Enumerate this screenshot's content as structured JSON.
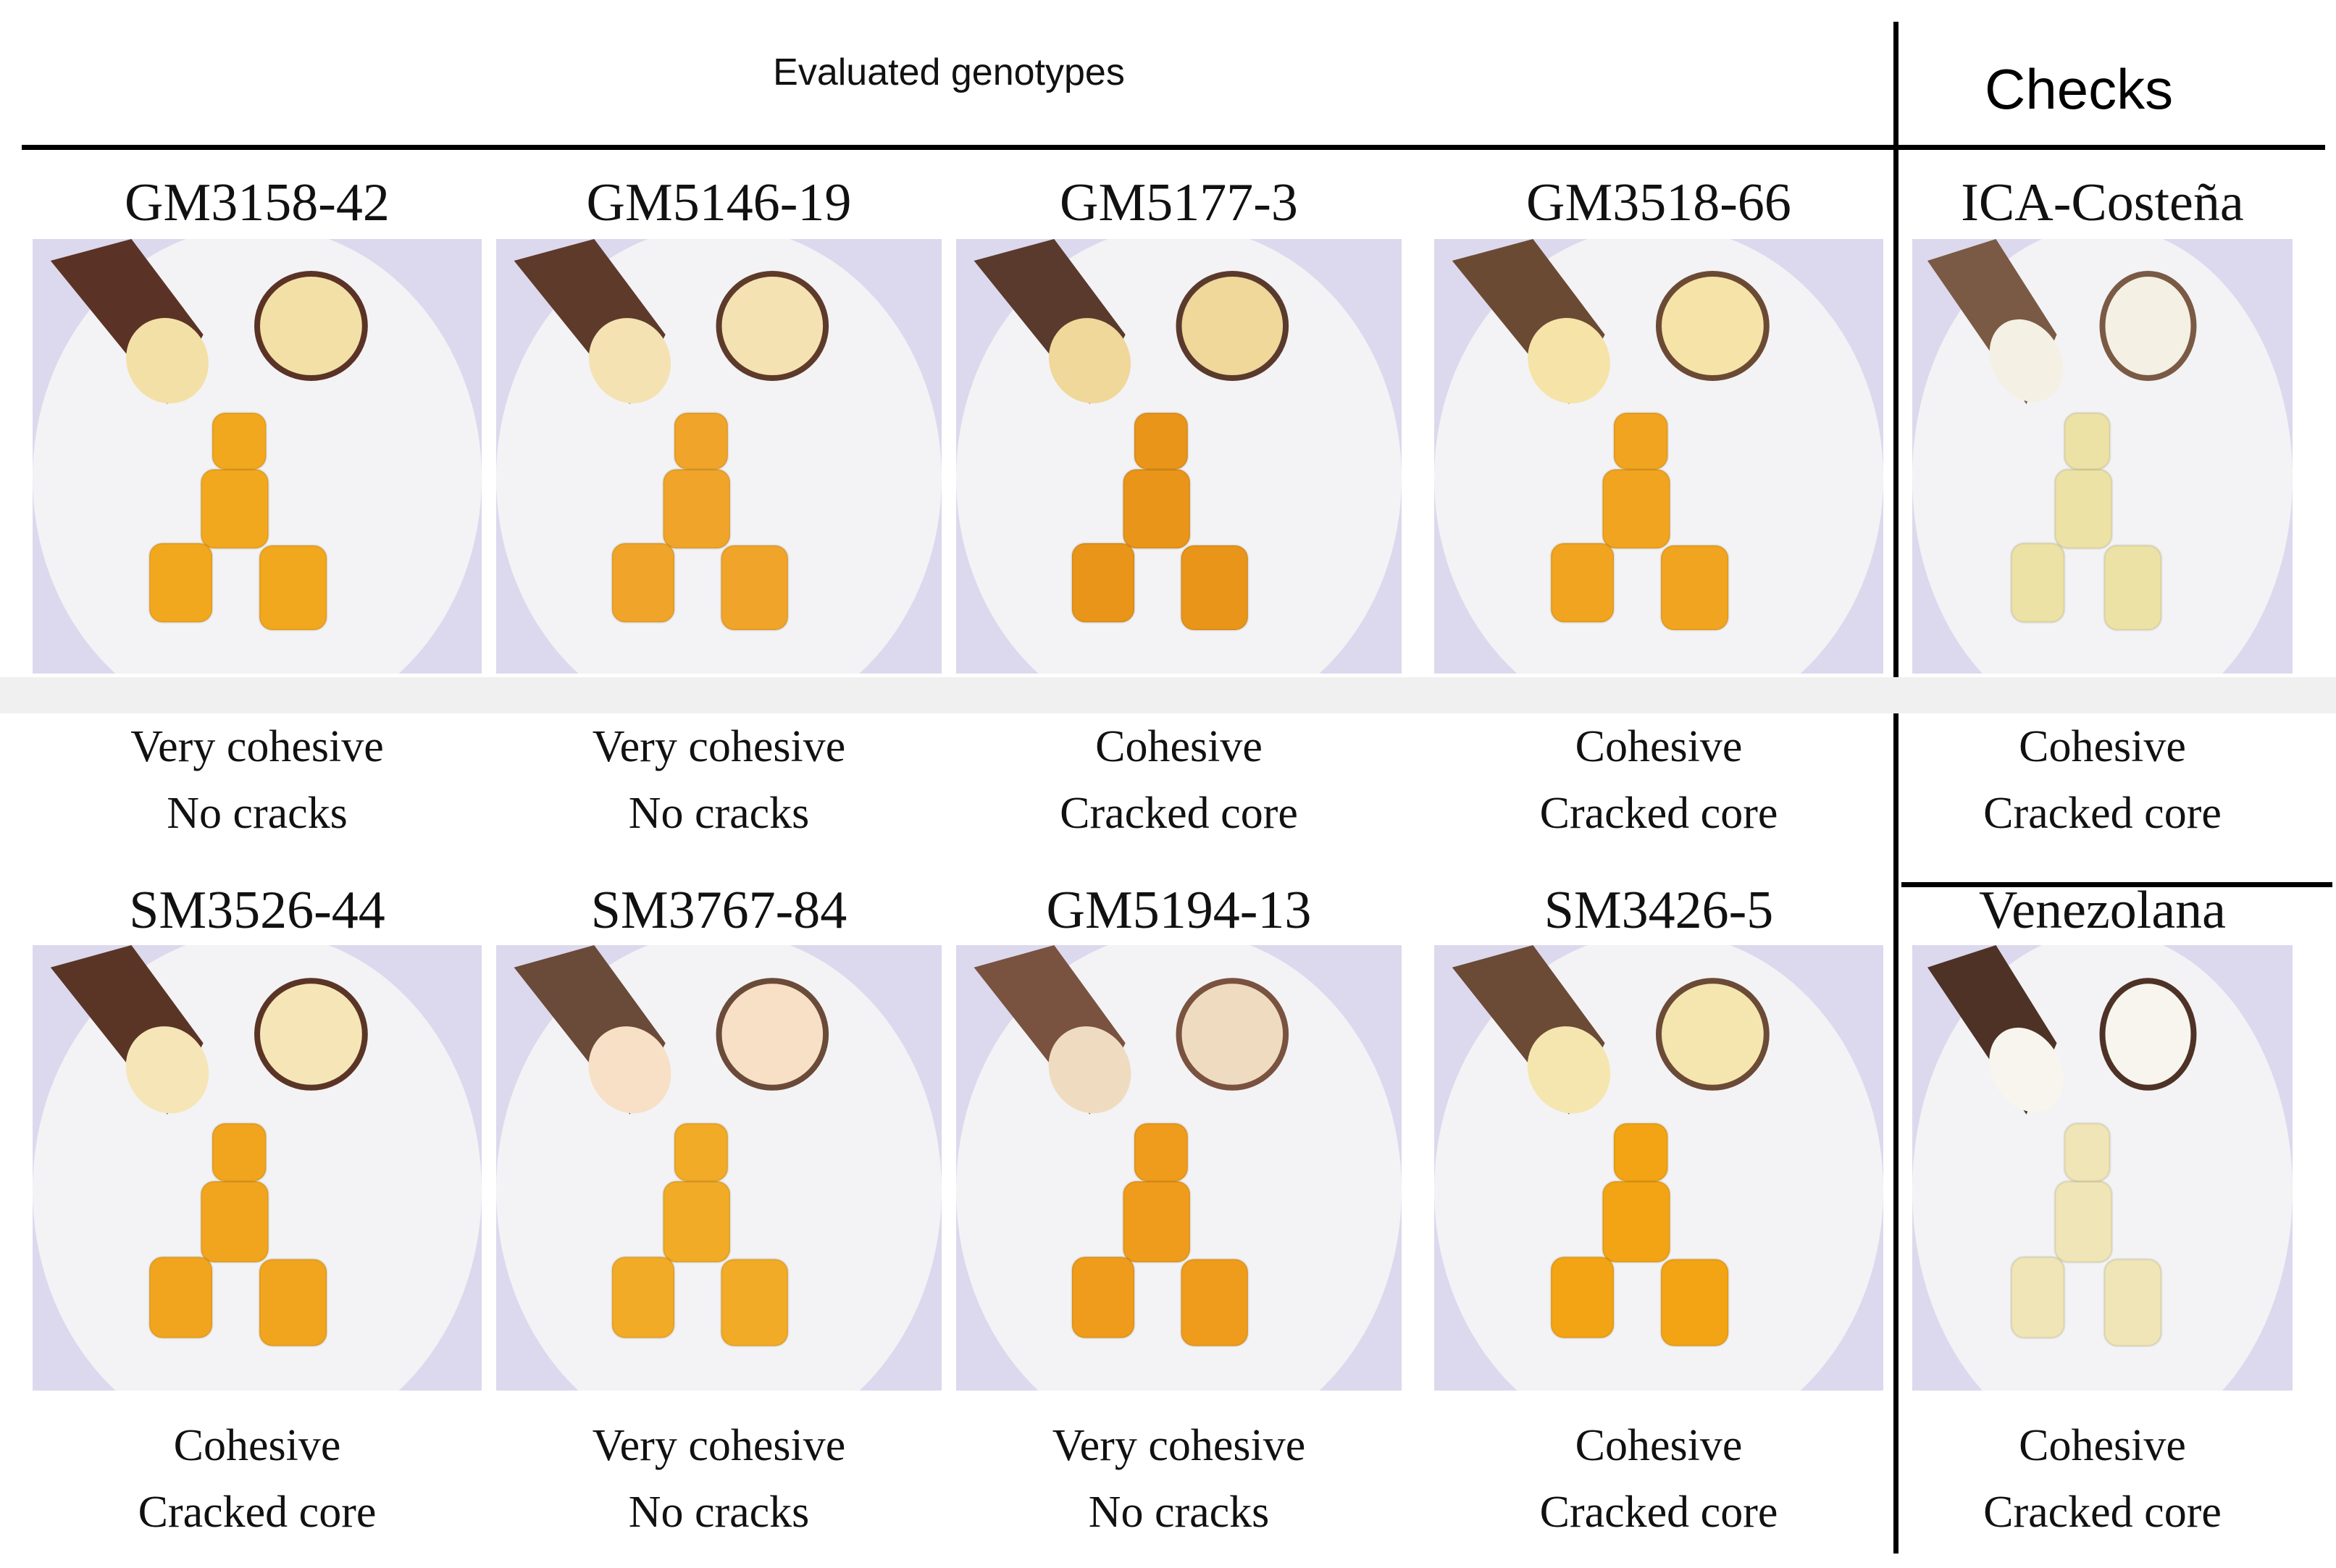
{
  "header": {
    "left_title": "Evaluated genotypes",
    "right_title": "Checks"
  },
  "rows": [
    {
      "panels": [
        {
          "name": "GM3158-42",
          "line1": "Very cohesive",
          "line2": "No cracks",
          "flesh": "#f2a81e",
          "peel": "#5a3326",
          "slice": "#f3e0a6"
        },
        {
          "name": "GM5146-19",
          "line1": "Very cohesive",
          "line2": "No cracks",
          "flesh": "#f0a52a",
          "peel": "#5e3a2a",
          "slice": "#f4e2b3"
        },
        {
          "name": "GM5177-3",
          "line1": "Cohesive",
          "line2": "Cracked core",
          "flesh": "#e9951a",
          "peel": "#5a3a2c",
          "slice": "#f0d79a"
        },
        {
          "name": "GM3518-66",
          "line1": "Cohesive",
          "line2": "Cracked core",
          "flesh": "#f1a41f",
          "peel": "#6b4a34",
          "slice": "#f6e3a8"
        },
        {
          "name": "ICA-Costeña",
          "line1": "Cohesive",
          "line2": "Cracked core",
          "flesh": "#ede2a6",
          "peel": "#7a5a45",
          "slice": "#f4f0e3"
        }
      ]
    },
    {
      "panels": [
        {
          "name": "SM3526-44",
          "line1": "Cohesive",
          "line2": "Cracked core",
          "flesh": "#f1a51e",
          "peel": "#5a3526",
          "slice": "#f6e6b7"
        },
        {
          "name": "SM3767-84",
          "line1": "Very cohesive",
          "line2": "No cracks",
          "flesh": "#f2ab27",
          "peel": "#6a4a38",
          "slice": "#f7e0c6"
        },
        {
          "name": "GM5194-13",
          "line1": "Very cohesive",
          "line2": "No cracks",
          "flesh": "#ef9c1c",
          "peel": "#7a5240",
          "slice": "#efdcc0"
        },
        {
          "name": "SM3426-5",
          "line1": "Cohesive",
          "line2": "Cracked core",
          "flesh": "#f2a414",
          "peel": "#6b4a36",
          "slice": "#f5e6b0"
        },
        {
          "name": "Venezolana",
          "line1": "Cohesive",
          "line2": "Cracked core",
          "flesh": "#efe5b6",
          "peel": "#4e3226",
          "slice": "#f7f5ee"
        }
      ]
    }
  ]
}
